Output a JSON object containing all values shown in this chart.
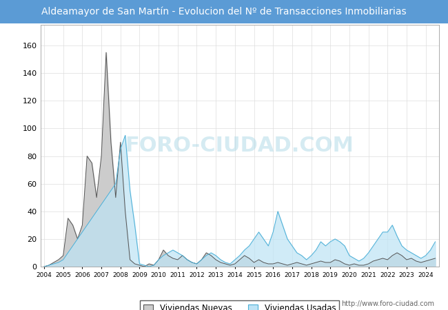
{
  "title": "Aldeamayor de San Martín - Evolucion del Nº de Transacciones Inmobiliarias",
  "title_bg_color": "#5B9BD5",
  "title_text_color": "white",
  "ylim": [
    0,
    175
  ],
  "yticks": [
    0,
    20,
    40,
    60,
    80,
    100,
    120,
    140,
    160
  ],
  "legend_labels": [
    "Viviendas Nuevas",
    "Viviendas Usadas"
  ],
  "nuevas_line_color": "#555555",
  "nuevas_fill_color": "#CCCCCC",
  "usadas_line_color": "#4BAFD6",
  "usadas_fill_color": "#BDE3F5",
  "footer_text": "http://www.foro-ciudad.com",
  "watermark": "FORO-CIUDAD.COM",
  "years": [
    2004,
    2005,
    2006,
    2007,
    2008,
    2009,
    2010,
    2011,
    2012,
    2013,
    2014,
    2015,
    2016,
    2017,
    2018,
    2019,
    2020,
    2021,
    2022,
    2023,
    2024
  ],
  "nuevas_quarterly": [
    0,
    1,
    3,
    5,
    8,
    35,
    30,
    20,
    30,
    80,
    75,
    50,
    80,
    155,
    90,
    50,
    90,
    40,
    5,
    2,
    1,
    0,
    2,
    1,
    5,
    12,
    8,
    6,
    5,
    8,
    5,
    3,
    2,
    5,
    10,
    8,
    5,
    3,
    2,
    1,
    2,
    5,
    8,
    6,
    3,
    5,
    3,
    2,
    2,
    3,
    2,
    1,
    2,
    3,
    2,
    1,
    2,
    3,
    4,
    3,
    3,
    5,
    4,
    2,
    1,
    2,
    1,
    1,
    2,
    4,
    5,
    6,
    5,
    8,
    10,
    8,
    5,
    6,
    4,
    3,
    4,
    5,
    6,
    0
  ],
  "usadas_quarterly": [
    0,
    1,
    2,
    3,
    5,
    10,
    15,
    20,
    25,
    30,
    35,
    40,
    45,
    50,
    55,
    60,
    85,
    95,
    55,
    30,
    2,
    1,
    0,
    1,
    5,
    8,
    10,
    12,
    10,
    8,
    5,
    3,
    2,
    5,
    8,
    10,
    8,
    5,
    3,
    2,
    5,
    8,
    12,
    15,
    20,
    25,
    20,
    15,
    25,
    40,
    30,
    20,
    15,
    10,
    8,
    5,
    8,
    12,
    18,
    15,
    18,
    20,
    18,
    15,
    8,
    6,
    4,
    6,
    10,
    15,
    20,
    25,
    25,
    30,
    22,
    15,
    12,
    10,
    8,
    6,
    8,
    12,
    18,
    0
  ]
}
